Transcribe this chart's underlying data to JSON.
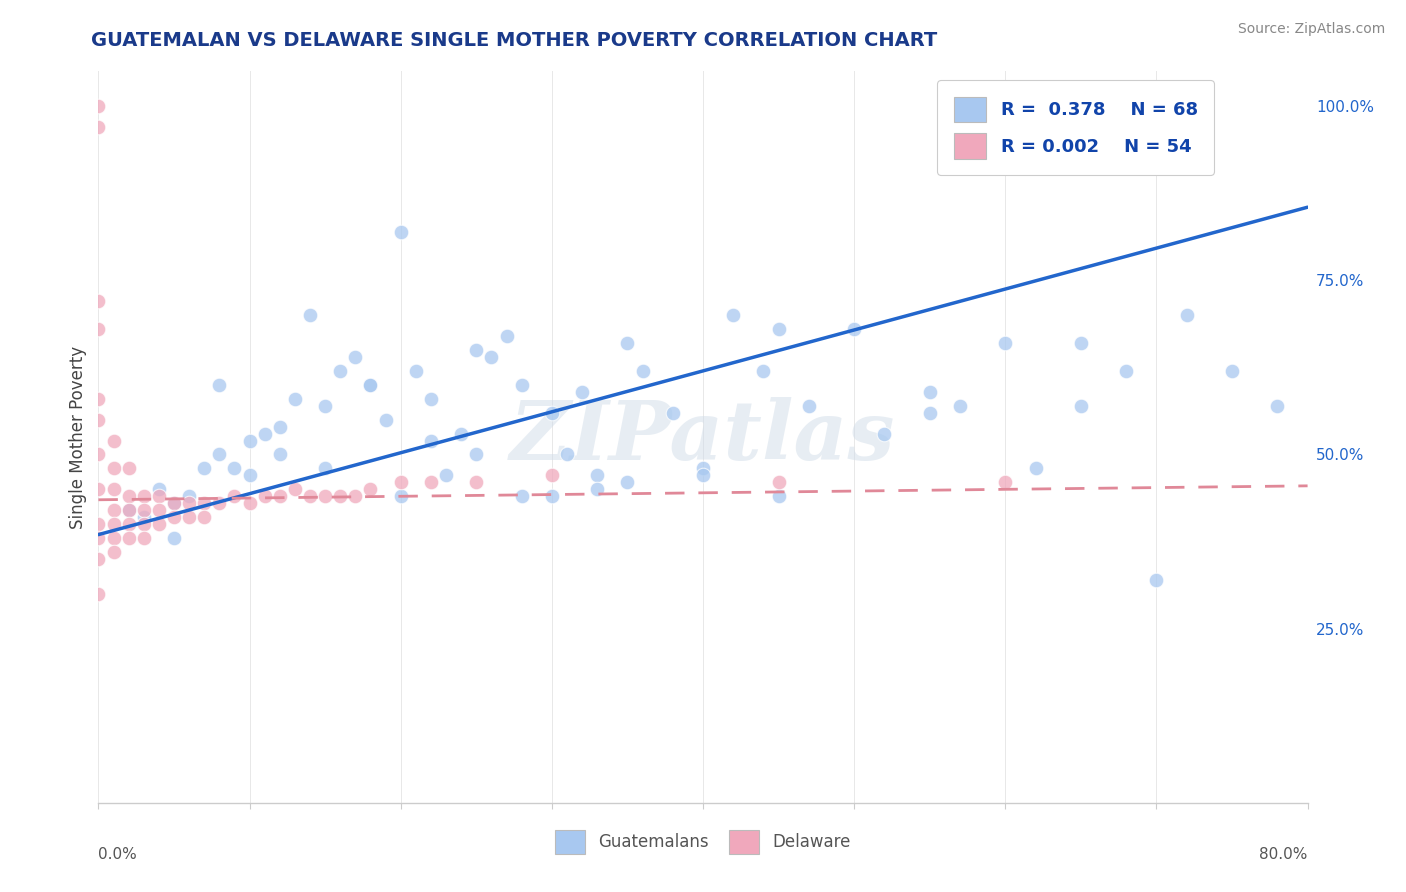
{
  "title": "GUATEMALAN VS DELAWARE SINGLE MOTHER POVERTY CORRELATION CHART",
  "source": "Source: ZipAtlas.com",
  "ylabel": "Single Mother Poverty",
  "right_yticks": [
    0.25,
    0.5,
    0.75,
    1.0
  ],
  "right_yticklabels": [
    "25.0%",
    "50.0%",
    "75.0%",
    "100.0%"
  ],
  "blue_color": "#a8c8f0",
  "pink_color": "#f0a8bc",
  "blue_line_color": "#2266cc",
  "pink_line_color": "#e08898",
  "legend_text_color": "#1144aa",
  "title_color": "#1a3a8a",
  "watermark": "ZIPatlas",
  "xlim": [
    0.0,
    0.8
  ],
  "ylim": [
    0.0,
    1.05
  ],
  "blue_trend_x": [
    0.0,
    0.8
  ],
  "blue_trend_y": [
    0.385,
    0.855
  ],
  "pink_trend_x": [
    0.0,
    0.8
  ],
  "pink_trend_y": [
    0.435,
    0.455
  ],
  "guatemalans_x": [
    0.02,
    0.03,
    0.04,
    0.05,
    0.06,
    0.07,
    0.08,
    0.09,
    0.1,
    0.11,
    0.12,
    0.13,
    0.14,
    0.15,
    0.16,
    0.17,
    0.18,
    0.19,
    0.2,
    0.21,
    0.22,
    0.23,
    0.24,
    0.25,
    0.26,
    0.27,
    0.28,
    0.3,
    0.31,
    0.32,
    0.33,
    0.35,
    0.36,
    0.38,
    0.4,
    0.42,
    0.44,
    0.45,
    0.47,
    0.5,
    0.52,
    0.55,
    0.57,
    0.6,
    0.62,
    0.65,
    0.68,
    0.7,
    0.72,
    0.75,
    0.05,
    0.08,
    0.1,
    0.12,
    0.15,
    0.18,
    0.22,
    0.28,
    0.33,
    0.4,
    0.2,
    0.25,
    0.3,
    0.35,
    0.45,
    0.55,
    0.65,
    0.78
  ],
  "guatemalans_y": [
    0.42,
    0.41,
    0.45,
    0.43,
    0.44,
    0.48,
    0.5,
    0.48,
    0.52,
    0.53,
    0.5,
    0.58,
    0.7,
    0.57,
    0.62,
    0.64,
    0.6,
    0.55,
    0.82,
    0.62,
    0.58,
    0.47,
    0.53,
    0.65,
    0.64,
    0.67,
    0.6,
    0.56,
    0.5,
    0.59,
    0.47,
    0.66,
    0.62,
    0.56,
    0.48,
    0.7,
    0.62,
    0.68,
    0.57,
    0.68,
    0.53,
    0.59,
    0.57,
    0.66,
    0.48,
    0.66,
    0.62,
    0.32,
    0.7,
    0.62,
    0.38,
    0.6,
    0.47,
    0.54,
    0.48,
    0.6,
    0.52,
    0.44,
    0.45,
    0.47,
    0.44,
    0.5,
    0.44,
    0.46,
    0.44,
    0.56,
    0.57,
    0.57
  ],
  "delaware_x": [
    0.0,
    0.0,
    0.0,
    0.0,
    0.0,
    0.0,
    0.0,
    0.0,
    0.0,
    0.0,
    0.0,
    0.0,
    0.01,
    0.01,
    0.01,
    0.01,
    0.01,
    0.01,
    0.01,
    0.02,
    0.02,
    0.02,
    0.02,
    0.02,
    0.03,
    0.03,
    0.03,
    0.03,
    0.04,
    0.04,
    0.04,
    0.05,
    0.05,
    0.06,
    0.06,
    0.07,
    0.07,
    0.08,
    0.09,
    0.1,
    0.11,
    0.12,
    0.13,
    0.14,
    0.15,
    0.16,
    0.17,
    0.18,
    0.2,
    0.22,
    0.25,
    0.3,
    0.45,
    0.6
  ],
  "delaware_y": [
    1.0,
    0.97,
    0.72,
    0.68,
    0.58,
    0.55,
    0.5,
    0.45,
    0.4,
    0.38,
    0.35,
    0.3,
    0.52,
    0.48,
    0.45,
    0.42,
    0.4,
    0.38,
    0.36,
    0.48,
    0.44,
    0.42,
    0.4,
    0.38,
    0.44,
    0.42,
    0.4,
    0.38,
    0.44,
    0.42,
    0.4,
    0.43,
    0.41,
    0.43,
    0.41,
    0.43,
    0.41,
    0.43,
    0.44,
    0.43,
    0.44,
    0.44,
    0.45,
    0.44,
    0.44,
    0.44,
    0.44,
    0.45,
    0.46,
    0.46,
    0.46,
    0.47,
    0.46,
    0.46
  ]
}
